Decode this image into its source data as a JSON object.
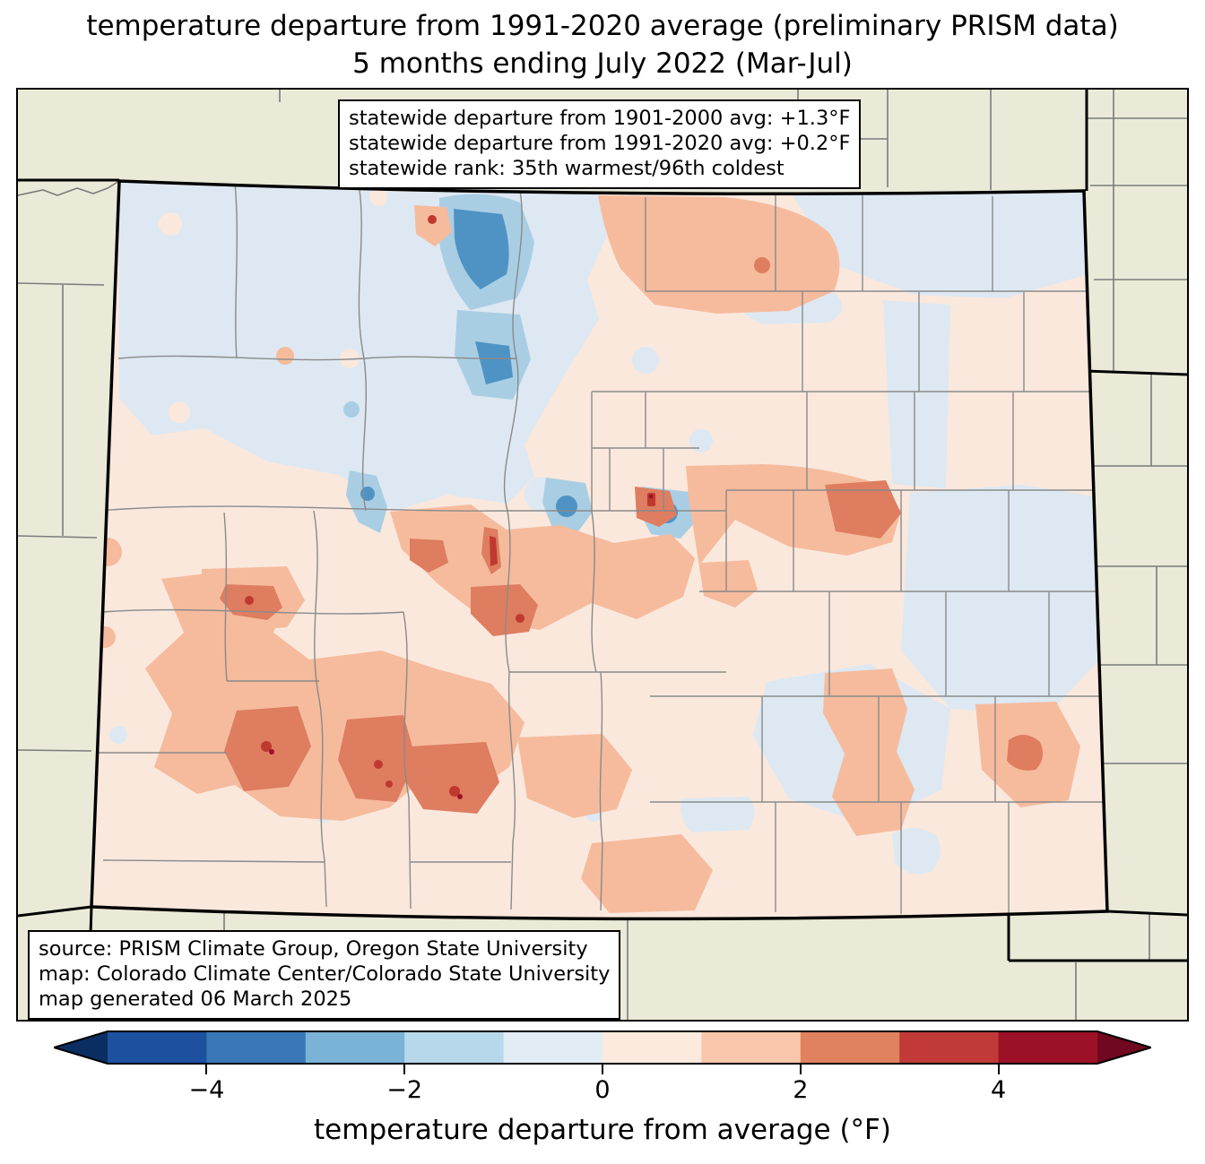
{
  "title": {
    "line1": "temperature departure from 1991-2020 average (preliminary PRISM data)",
    "line2": "5 months ending July 2022 (Mar-Jul)"
  },
  "stats_box": {
    "line1": "statewide departure from 1901-2000 avg: +1.3°F",
    "line2": "statewide departure from 1991-2020 avg: +0.2°F",
    "line3": "statewide rank: 35th warmest/96th coldest"
  },
  "source_box": {
    "line1": "source: PRISM Climate Group, Oregon State University",
    "line2": "map: Colorado Climate Center/Colorado State University",
    "line3": "map generated 06 March 2025"
  },
  "colorbar": {
    "label": "temperature departure from average (°F)",
    "tick_labels": [
      "−4",
      "−2",
      "0",
      "2",
      "4"
    ],
    "tick_values": [
      -4,
      -2,
      0,
      2,
      4
    ],
    "range_min": -5,
    "range_max": 5,
    "segment_step_f": 1,
    "segment_colors": [
      "#1d509f",
      "#3a77b6",
      "#7bb3d7",
      "#b7d8ea",
      "#e2ecf5",
      "#fceade",
      "#f8c6aa",
      "#e0825f",
      "#c23a38",
      "#9c1127"
    ],
    "under_arrow_color": "#0b2e62",
    "over_arrow_color": "#70081f",
    "outline_color": "#000000"
  },
  "map": {
    "region_shown": "Colorado with county boundaries and neighboring states",
    "outside_fill": "#ebead8",
    "state_border_color": "#000000",
    "county_line_color": "#8a8a8a",
    "anomaly_palette": {
      "cool_strong": "#4f93c5",
      "cool_medium": "#a9cee3",
      "cool_light": "#dde8f2",
      "warm_light": "#fae8dd",
      "warm_medium": "#f6bb9d",
      "warm_strong": "#de7d60",
      "hot_spot": "#c0392f",
      "hot_core": "#9c1127"
    }
  }
}
